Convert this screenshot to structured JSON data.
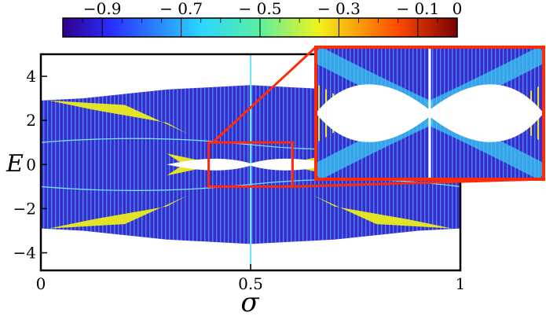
{
  "chart_data": {
    "type": "heatmap",
    "title": "",
    "xlabel": "σ",
    "ylabel": "E",
    "xlim": [
      0,
      1
    ],
    "ylim": [
      -4.8,
      5
    ],
    "x_ticks": [
      0,
      0.5,
      1
    ],
    "x_tick_labels": [
      "0",
      "0.5",
      "1"
    ],
    "y_ticks": [
      -4,
      -2,
      0,
      2,
      4
    ],
    "y_tick_labels": [
      "−4",
      "−2",
      "0",
      "2",
      "4"
    ],
    "colorbar": {
      "orientation": "horizontal",
      "placement": "top",
      "range": [
        -1,
        0
      ],
      "ticks": [
        -0.9,
        -0.7,
        -0.5,
        -0.3,
        -0.1,
        0
      ],
      "tick_labels": [
        "−0.9",
        "− 0.7",
        "− 0.5",
        "− 0.3",
        "− 0.1",
        "0"
      ],
      "colormap": "jet"
    },
    "band_edges": {
      "sigma": [
        0,
        0.1,
        0.2,
        0.3,
        0.4,
        0.5,
        0.6,
        0.7,
        0.8,
        0.9,
        1
      ],
      "upper_E": [
        2.9,
        3.0,
        3.2,
        3.4,
        3.5,
        3.6,
        3.5,
        3.4,
        3.2,
        3.0,
        2.9
      ],
      "lower_E": [
        -2.9,
        -3.0,
        -3.2,
        -3.4,
        -3.5,
        -3.6,
        -3.5,
        -3.4,
        -3.2,
        -3.0,
        -2.9
      ]
    },
    "gap_region": {
      "sigma_range": [
        0.3,
        0.7
      ],
      "E_range": [
        -0.5,
        0.5
      ]
    },
    "zoom_region": {
      "sigma_range": [
        0.4,
        0.6
      ],
      "E_range": [
        -1,
        1
      ]
    },
    "colors": {
      "background_band": "#3a2bd0",
      "high_density": "#ecec1c",
      "medium": "#3cc9f0",
      "zoom_frame": "#ff2a0a"
    }
  }
}
